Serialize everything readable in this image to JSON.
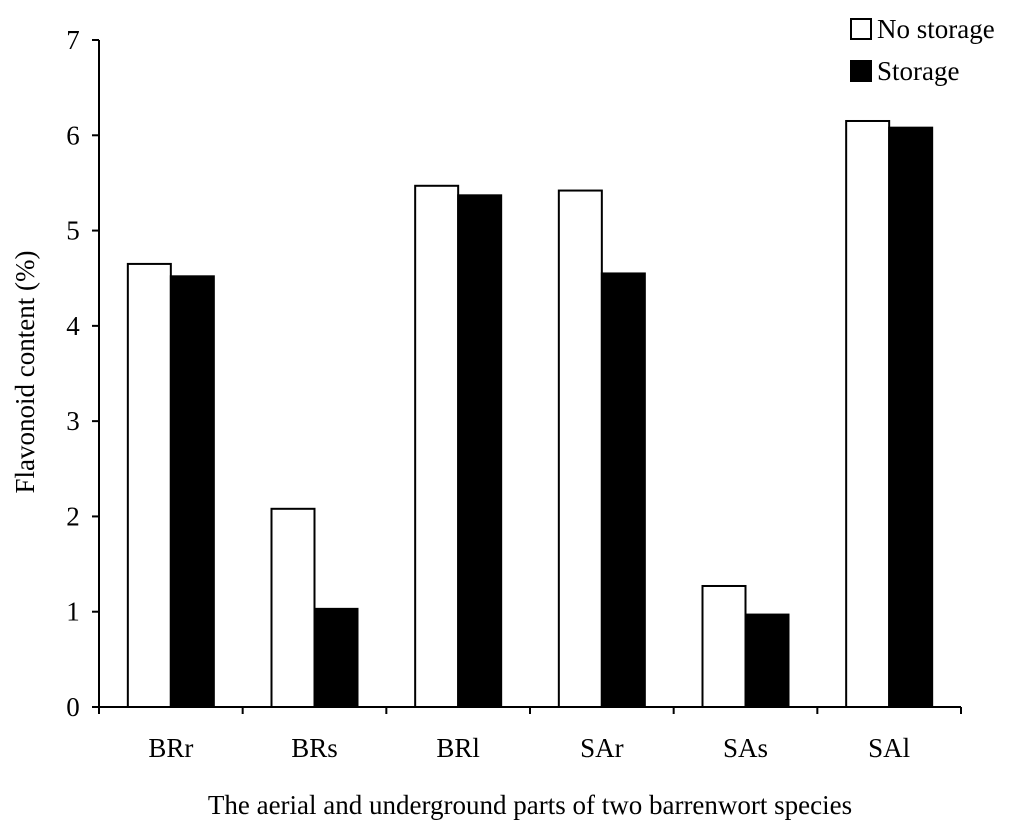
{
  "chart_data": {
    "type": "bar",
    "categories": [
      "BRr",
      "BRs",
      "BRl",
      "SAr",
      "SAs",
      "SAl"
    ],
    "series": [
      {
        "name": "No storage",
        "values": [
          4.65,
          2.08,
          5.47,
          5.42,
          1.27,
          6.15
        ],
        "color": "#ffffff"
      },
      {
        "name": "Storage",
        "values": [
          4.52,
          1.03,
          5.37,
          4.55,
          0.97,
          6.08
        ],
        "color": "#000000"
      }
    ],
    "xlabel": "The aerial and underground parts of two barrenwort species",
    "ylabel": "Flavonoid content (%)",
    "ylim": [
      0,
      7
    ],
    "yticks": [
      "0",
      "1",
      "2",
      "3",
      "4",
      "5",
      "6",
      "7"
    ],
    "grid": false,
    "legend_position": "top-right"
  }
}
